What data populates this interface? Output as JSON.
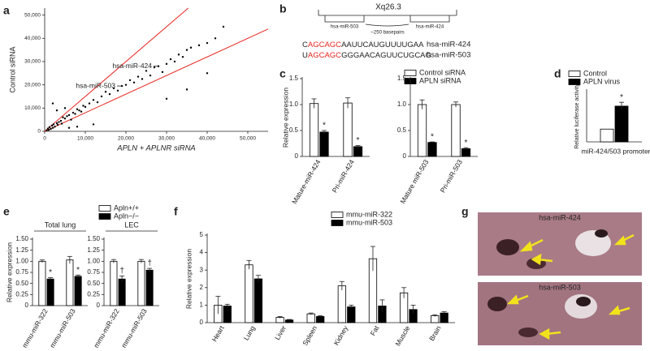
{
  "panels": [
    "a",
    "b",
    "c",
    "d",
    "e",
    "f",
    "g"
  ],
  "diagram": {
    "locus": "Xq26.3",
    "genes": [
      "hsa-miR-503",
      "hsa-miR-424"
    ],
    "distance": "~250 basepairs",
    "highlight_color": "#e8251f",
    "sequences": [
      {
        "parts": [
          "C",
          "AGCAGC",
          "AAUUCAUGUUUUGAA"
        ],
        "label": "hsa-miR-424"
      },
      {
        "parts": [
          "U",
          "AGCAGC",
          "GGGAACAGUUCUGCAG"
        ],
        "label": "hsa-miR-503"
      }
    ]
  },
  "images": {
    "labels": [
      "hsa-miR-424",
      "hsa-miR-503"
    ]
  },
  "chart_data": [
    {
      "type": "scatter",
      "x_label": "APLN + APLNR siRNA",
      "y_label": "Control siRNA",
      "color": "#000000",
      "x": [
        500,
        800,
        1000,
        1200,
        1500,
        1800,
        2000,
        2200,
        2500,
        3000,
        3200,
        3500,
        4000,
        4200,
        4500,
        5000,
        5500,
        6000,
        6500,
        7000,
        7500,
        8000,
        8500,
        9000,
        9500,
        10000,
        11000,
        12000,
        13000,
        14000,
        15000,
        16000,
        17000,
        18000,
        19000,
        20000,
        21000,
        22000,
        23000,
        24000,
        25000,
        26000,
        27000,
        28000,
        29000,
        30000,
        31000,
        32000,
        33000,
        34000,
        35000,
        36000,
        38000,
        40000,
        42000,
        44000,
        2000,
        5000,
        8000,
        12000,
        30000,
        3000,
        6000,
        35000,
        40000
      ],
      "y": [
        400,
        1200,
        600,
        1800,
        1000,
        2500,
        1500,
        3000,
        2000,
        3500,
        2800,
        4000,
        4500,
        3300,
        6000,
        5500,
        6500,
        7000,
        5000,
        8000,
        7500,
        9500,
        9000,
        8500,
        11000,
        10500,
        12000,
        13500,
        12500,
        15000,
        17000,
        16000,
        18500,
        17500,
        19500,
        20000,
        22000,
        21000,
        23500,
        22500,
        26000,
        24000,
        27500,
        28000,
        25500,
        29000,
        31000,
        30000,
        33000,
        32000,
        35000,
        36000,
        37000,
        38000,
        40000,
        45000,
        12000,
        10000,
        2000,
        3000,
        14000,
        9000,
        1500,
        18000,
        25000
      ],
      "xlim": [
        0,
        55000
      ],
      "ylim": [
        0,
        53000
      ],
      "xticks": [
        0,
        {
          "value": 10000,
          "label": "10,000"
        },
        {
          "value": 20000,
          "label": "20,000"
        },
        {
          "value": 30000,
          "label": "30,000"
        },
        {
          "value": 40000,
          "label": "40,000"
        },
        {
          "value": 50000,
          "label": "50,000"
        }
      ],
      "yticks": [
        0,
        {
          "value": 10000,
          "label": "10,000"
        },
        {
          "value": 20000,
          "label": "20,000"
        },
        {
          "value": 30000,
          "label": "30,000"
        },
        {
          "value": 40000,
          "label": "40,000"
        },
        {
          "value": 50000,
          "label": "50,000"
        }
      ],
      "line_color": "#e8251f",
      "fit_lines": [
        {
          "slope": 1.5
        },
        {
          "slope": 0.8
        }
      ],
      "annotations": [
        {
          "text": "hsa-miR-424",
          "x": 28000,
          "y": 28000
        },
        {
          "text": "hsa-miR-503",
          "x": 19000,
          "y": 19500
        }
      ]
    },
    {
      "type": "bar",
      "y_label": "Relative expression",
      "categories": [
        "Mature-miR-424",
        "Pri-miR-424"
      ],
      "series": [
        {
          "name": "Control siRNA",
          "color": "#ffffff",
          "values": [
            1.02,
            1.03
          ],
          "errors": [
            0.09,
            0.1
          ]
        },
        {
          "name": "APLN siRNA",
          "color": "#000000",
          "values": [
            0.47,
            0.19
          ],
          "errors": [
            0.03,
            0.02
          ],
          "markers": [
            "*",
            "*"
          ]
        }
      ],
      "ylim": [
        0,
        1.5
      ],
      "yticks": [
        0,
        0.5,
        {
          "value": 1,
          "label": "1.0"
        },
        1.5
      ]
    },
    {
      "type": "bar",
      "categories": [
        "Mature miR-503",
        "Pri-miR-503"
      ],
      "series": [
        {
          "color": "#ffffff",
          "values": [
            1.0,
            1.0
          ],
          "errors": [
            0.09,
            0.05
          ]
        },
        {
          "color": "#000000",
          "values": [
            0.27,
            0.15
          ],
          "errors": [
            0.01,
            0.02
          ],
          "markers": [
            "*",
            "*"
          ]
        }
      ],
      "ylim": [
        0,
        1.5
      ],
      "yticks": [
        0,
        0.5,
        {
          "value": 1,
          "label": "1.0"
        },
        1.5
      ]
    },
    {
      "type": "bar",
      "y_label": "Relative luciferase activity",
      "x_label": "miR-424/503 promoter",
      "categories": [
        null
      ],
      "series": [
        {
          "name": "Control",
          "color": "#ffffff",
          "values": [
            1.0
          ]
        },
        {
          "name": "APLN virus",
          "color": "#000000",
          "values": [
            2.8
          ],
          "errors": [
            0.3
          ],
          "markers": [
            "*"
          ]
        }
      ],
      "ylim": [
        0,
        4
      ]
    },
    {
      "type": "bar",
      "title": "Total lung",
      "y_label": "Relative expression",
      "categories": [
        "mmu-miR-322",
        "mmu-miR-503"
      ],
      "series": [
        {
          "name": "Apln+/+",
          "color": "#ffffff",
          "values": [
            1.0,
            1.03
          ],
          "errors": [
            0.03,
            0.08
          ]
        },
        {
          "name": "Apln−/−",
          "color": "#000000",
          "values": [
            0.6,
            0.66
          ],
          "errors": [
            0.03,
            0.03
          ],
          "markers": [
            "*",
            "*"
          ]
        }
      ],
      "ylim": [
        0,
        1.5
      ],
      "yticks": [
        0,
        0.25,
        {
          "value": 0.5,
          "label": "0.50"
        },
        0.75,
        {
          "value": 1,
          "label": "1.00"
        },
        1.25,
        {
          "value": 1.5,
          "label": "1.50"
        }
      ]
    },
    {
      "type": "bar",
      "title": "LEC",
      "categories": [
        "mmu-miR-322",
        "mmu-miR-503"
      ],
      "series": [
        {
          "color": "#ffffff",
          "values": [
            1.0,
            1.0
          ],
          "errors": [
            0.04,
            0.04
          ]
        },
        {
          "color": "#000000",
          "values": [
            0.6,
            0.8
          ],
          "errors": [
            0.07,
            0.04
          ],
          "markers": [
            "†",
            "†"
          ]
        }
      ],
      "ylim": [
        0,
        1.5
      ],
      "yticks": [
        0,
        0.25,
        {
          "value": 0.5,
          "label": "0.50"
        },
        0.75,
        {
          "value": 1,
          "label": "1.00"
        },
        1.25,
        {
          "value": 1.5,
          "label": "1.50"
        }
      ]
    },
    {
      "type": "bar",
      "y_label": "Relative expression",
      "categories": [
        "Heart",
        "Lung",
        "Liver",
        "Spleen",
        "Kidney",
        "Fat",
        "Muscle",
        "Brain"
      ],
      "series": [
        {
          "name": "mmu-miR-322",
          "color": "#ffffff",
          "values": [
            1.0,
            3.3,
            0.3,
            0.5,
            2.1,
            3.65,
            1.7,
            0.4
          ],
          "errors": [
            0.5,
            0.25,
            0.05,
            0.05,
            0.25,
            0.7,
            0.3,
            0.05
          ]
        },
        {
          "name": "mmu-miR-503",
          "color": "#000000",
          "values": [
            0.95,
            2.5,
            0.15,
            0.35,
            0.9,
            0.95,
            0.75,
            0.55
          ],
          "errors": [
            0.1,
            0.2,
            0.03,
            0.05,
            0.1,
            0.35,
            0.25,
            0.07
          ]
        }
      ],
      "ylim": [
        0,
        5
      ],
      "yticks": [
        0,
        1,
        2,
        3,
        4,
        5
      ]
    }
  ]
}
